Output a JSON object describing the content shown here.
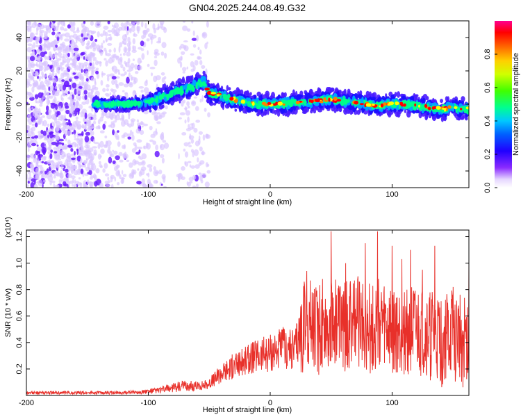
{
  "title": "GN04.2025.244.08.49.G32",
  "chart_data": [
    {
      "type": "heatmap",
      "xlabel": "Height of straight line (km)",
      "ylabel": "Frequency (Hz)",
      "xlim": [
        -200,
        163
      ],
      "ylim": [
        -50,
        50
      ],
      "x_ticks": [
        -200,
        -100,
        0,
        100
      ],
      "y_ticks": [
        -40,
        -20,
        0,
        20,
        40
      ],
      "colorbar": {
        "label": "Normalized spectral amplitude",
        "range": [
          0,
          1
        ],
        "ticks": [
          "0.0",
          "0.2",
          "0.4",
          "0.6",
          "0.8"
        ],
        "colors": [
          "#ffffff",
          "#6a00ff",
          "#0000ff",
          "#00c0ff",
          "#00ff80",
          "#40ff00",
          "#ffff00",
          "#ff8000",
          "#ff0000",
          "#ff0080"
        ]
      },
      "ridge": {
        "x": [
          -145,
          -120,
          -100,
          -85,
          -75,
          -65,
          -55,
          -50,
          -40,
          -30,
          -20,
          -10,
          0,
          10,
          20,
          30,
          40,
          50,
          60,
          70,
          80,
          90,
          100,
          110,
          120,
          130,
          140,
          150,
          160
        ],
        "y": [
          0,
          0,
          1,
          5,
          8,
          10,
          14,
          7,
          5,
          3,
          1,
          0,
          0,
          0,
          1,
          1,
          2,
          3,
          2,
          1,
          0,
          -1,
          0,
          0,
          -1,
          -2,
          -3,
          -2,
          -3
        ]
      },
      "grid": false
    },
    {
      "type": "line",
      "xlabel": "Height of straight line (km)",
      "ylabel": "SNR (10 * v/v)",
      "y_multiplier": "(x10⁴)",
      "xlim": [
        -200,
        163
      ],
      "ylim": [
        0,
        1.25
      ],
      "x_ticks": [
        -200,
        -100,
        0,
        100
      ],
      "y_ticks": [
        "0.2",
        "0.4",
        "0.6",
        "0.8",
        "1.0",
        "1.2"
      ],
      "series": [
        {
          "color": "#e8302a",
          "x": [
            -200,
            -180,
            -160,
            -140,
            -120,
            -100,
            -90,
            -80,
            -70,
            -60,
            -55,
            -50,
            -45,
            -40,
            -30,
            -20,
            -10,
            0,
            10,
            20,
            25,
            30,
            40,
            50,
            60,
            70,
            80,
            90,
            100,
            110,
            120,
            130,
            140,
            150,
            160
          ],
          "y": [
            0.02,
            0.02,
            0.02,
            0.02,
            0.02,
            0.03,
            0.04,
            0.06,
            0.07,
            0.07,
            0.08,
            0.09,
            0.13,
            0.17,
            0.22,
            0.26,
            0.3,
            0.33,
            0.36,
            0.35,
            0.5,
            0.55,
            0.5,
            0.55,
            0.5,
            0.55,
            0.5,
            0.55,
            0.45,
            0.5,
            0.45,
            0.45,
            0.4,
            0.45,
            0.4
          ],
          "peak_x": [
            30,
            43,
            50,
            62,
            72,
            78,
            88,
            100,
            108,
            115,
            125,
            135,
            150,
            163
          ],
          "peak_y": [
            0.94,
            0.88,
            1.24,
            1.0,
            0.9,
            1.15,
            1.24,
            1.13,
            1.03,
            1.1,
            0.95,
            1.13,
            0.82,
            0.99
          ]
        }
      ],
      "grid": false
    }
  ]
}
